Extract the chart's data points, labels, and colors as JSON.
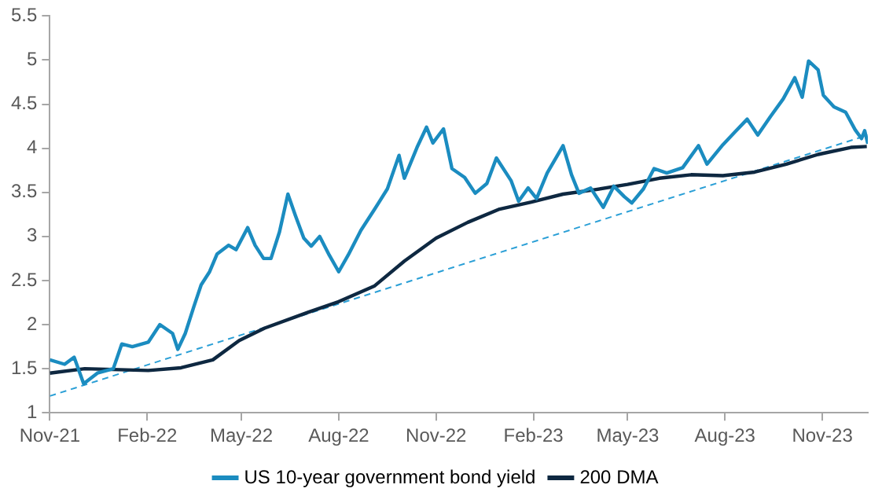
{
  "chart_data": {
    "type": "line",
    "xlim": [
      "2021-11-01",
      "2023-12-14"
    ],
    "xticks": [
      {
        "value": "2021-11-01",
        "label": "Nov-21"
      },
      {
        "value": "2022-02-01",
        "label": "Feb-22"
      },
      {
        "value": "2022-05-01",
        "label": "May-22"
      },
      {
        "value": "2022-08-01",
        "label": "Aug-22"
      },
      {
        "value": "2022-11-01",
        "label": "Nov-22"
      },
      {
        "value": "2023-02-01",
        "label": "Feb-23"
      },
      {
        "value": "2023-05-01",
        "label": "May-23"
      },
      {
        "value": "2023-08-01",
        "label": "Aug-23"
      },
      {
        "value": "2023-11-01",
        "label": "Nov-23"
      }
    ],
    "ylim": [
      1,
      5.5
    ],
    "yticks": [
      1,
      1.5,
      2,
      2.5,
      3,
      3.5,
      4,
      4.5,
      5,
      5.5
    ],
    "grid": false,
    "legend": "bottom",
    "marker": "none",
    "series": [
      {
        "name": "US 10-year government bond yield",
        "color": "#1b8cc0",
        "line_style": "solid",
        "x": [
          "2021-11-01",
          "2021-11-15",
          "2021-11-24",
          "2021-12-03",
          "2021-12-16",
          "2021-12-31",
          "2022-01-08",
          "2022-01-18",
          "2022-02-02",
          "2022-02-13",
          "2022-02-25",
          "2022-03-02",
          "2022-03-09",
          "2022-03-17",
          "2022-03-24",
          "2022-04-01",
          "2022-04-08",
          "2022-04-19",
          "2022-04-26",
          "2022-05-07",
          "2022-05-14",
          "2022-05-22",
          "2022-05-29",
          "2022-06-06",
          "2022-06-14",
          "2022-06-21",
          "2022-06-29",
          "2022-07-06",
          "2022-07-14",
          "2022-07-23",
          "2022-08-01",
          "2022-08-10",
          "2022-08-22",
          "2022-09-04",
          "2022-09-16",
          "2022-09-27",
          "2022-10-02",
          "2022-10-14",
          "2022-10-23",
          "2022-10-29",
          "2022-11-08",
          "2022-11-16",
          "2022-11-28",
          "2022-12-08",
          "2022-12-19",
          "2022-12-28",
          "2023-01-11",
          "2023-01-18",
          "2023-01-27",
          "2023-02-04",
          "2023-02-14",
          "2023-03-01",
          "2023-03-09",
          "2023-03-16",
          "2023-03-27",
          "2023-04-08",
          "2023-04-18",
          "2023-04-28",
          "2023-05-05",
          "2023-05-16",
          "2023-05-26",
          "2023-06-07",
          "2023-06-22",
          "2023-07-07",
          "2023-07-15",
          "2023-07-30",
          "2023-08-10",
          "2023-08-22",
          "2023-09-01",
          "2023-09-13",
          "2023-09-25",
          "2023-10-06",
          "2023-10-13",
          "2023-10-19",
          "2023-10-28",
          "2023-11-02",
          "2023-11-12",
          "2023-11-23",
          "2023-12-02",
          "2023-12-08",
          "2023-12-11",
          "2023-12-14"
        ],
        "values": [
          1.6,
          1.55,
          1.63,
          1.33,
          1.45,
          1.5,
          1.78,
          1.75,
          1.8,
          2.0,
          1.9,
          1.72,
          1.9,
          2.2,
          2.45,
          2.6,
          2.8,
          2.9,
          2.85,
          3.1,
          2.9,
          2.75,
          2.75,
          3.05,
          3.48,
          3.24,
          2.98,
          2.89,
          3.0,
          2.79,
          2.6,
          2.79,
          3.07,
          3.31,
          3.54,
          3.92,
          3.66,
          4.01,
          4.24,
          4.06,
          4.22,
          3.77,
          3.67,
          3.49,
          3.6,
          3.89,
          3.63,
          3.4,
          3.55,
          3.43,
          3.72,
          4.03,
          3.7,
          3.49,
          3.55,
          3.33,
          3.57,
          3.45,
          3.38,
          3.54,
          3.77,
          3.72,
          3.78,
          4.03,
          3.82,
          4.04,
          4.18,
          4.33,
          4.15,
          4.36,
          4.56,
          4.8,
          4.58,
          4.99,
          4.89,
          4.6,
          4.47,
          4.41,
          4.21,
          4.11,
          4.2,
          4.05
        ]
      },
      {
        "name": "200 DMA",
        "color": "#0e2841",
        "line_style": "solid",
        "x": [
          "2021-11-01",
          "2021-12-04",
          "2022-02-02",
          "2022-03-05",
          "2022-04-04",
          "2022-04-29",
          "2022-05-23",
          "2022-07-03",
          "2022-08-01",
          "2022-09-04",
          "2022-10-02",
          "2022-11-01",
          "2022-12-01",
          "2022-12-31",
          "2023-01-30",
          "2023-03-01",
          "2023-03-31",
          "2023-05-01",
          "2023-05-31",
          "2023-06-30",
          "2023-07-30",
          "2023-08-29",
          "2023-09-28",
          "2023-10-28",
          "2023-11-28",
          "2023-12-13"
        ],
        "values": [
          1.45,
          1.5,
          1.48,
          1.51,
          1.6,
          1.82,
          1.96,
          2.14,
          2.26,
          2.44,
          2.72,
          2.98,
          3.16,
          3.31,
          3.39,
          3.48,
          3.53,
          3.59,
          3.66,
          3.7,
          3.69,
          3.73,
          3.82,
          3.93,
          4.01,
          4.02
        ]
      },
      {
        "color": "#2a9fd6",
        "line_style": "dashed",
        "x": [
          "2021-11-01",
          "2023-12-14"
        ],
        "values": [
          1.19,
          4.15
        ]
      }
    ]
  }
}
